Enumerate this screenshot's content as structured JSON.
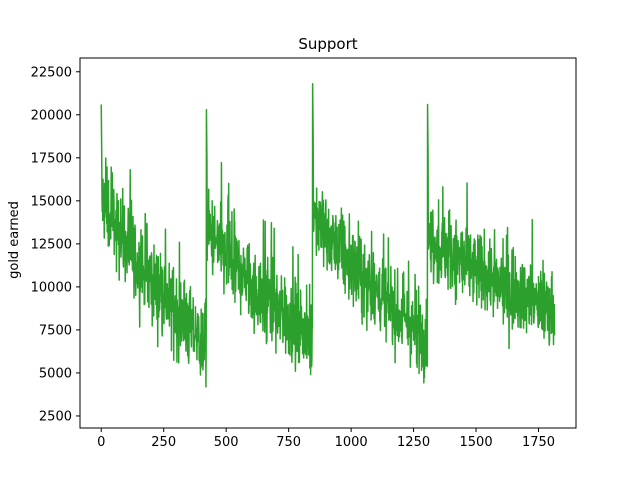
{
  "chart_data": {
    "type": "line",
    "title": "Support",
    "xlabel": "",
    "ylabel": "gold earned",
    "xlim": [
      -85,
      1900
    ],
    "ylim": [
      1800,
      23300
    ],
    "xticks": [
      0,
      250,
      500,
      750,
      1000,
      1250,
      1500,
      1750
    ],
    "yticks": [
      2500,
      5000,
      7500,
      10000,
      12500,
      15000,
      17500,
      20000,
      22500
    ],
    "grid": false,
    "legend": "none",
    "series_color": "#2ca02c",
    "series": [
      {
        "segments": [
          {
            "x_start": 0,
            "x_end": 420,
            "start_peak": 20600,
            "start_mean": 15200,
            "end_mean": 6500,
            "noise": 1900,
            "min_value": 2900
          },
          {
            "x_start": 421,
            "x_end": 845,
            "start_peak": 20300,
            "start_mean": 13500,
            "end_mean": 6800,
            "noise": 1900,
            "min_value": 2900
          },
          {
            "x_start": 846,
            "x_end": 1305,
            "start_peak": 21800,
            "start_mean": 14500,
            "end_mean": 6800,
            "noise": 1800,
            "min_value": 3200
          },
          {
            "x_start": 1306,
            "x_end": 1815,
            "start_peak": 20600,
            "start_mean": 13000,
            "end_mean": 8500,
            "noise": 1800,
            "min_value": 4600
          }
        ]
      }
    ]
  }
}
